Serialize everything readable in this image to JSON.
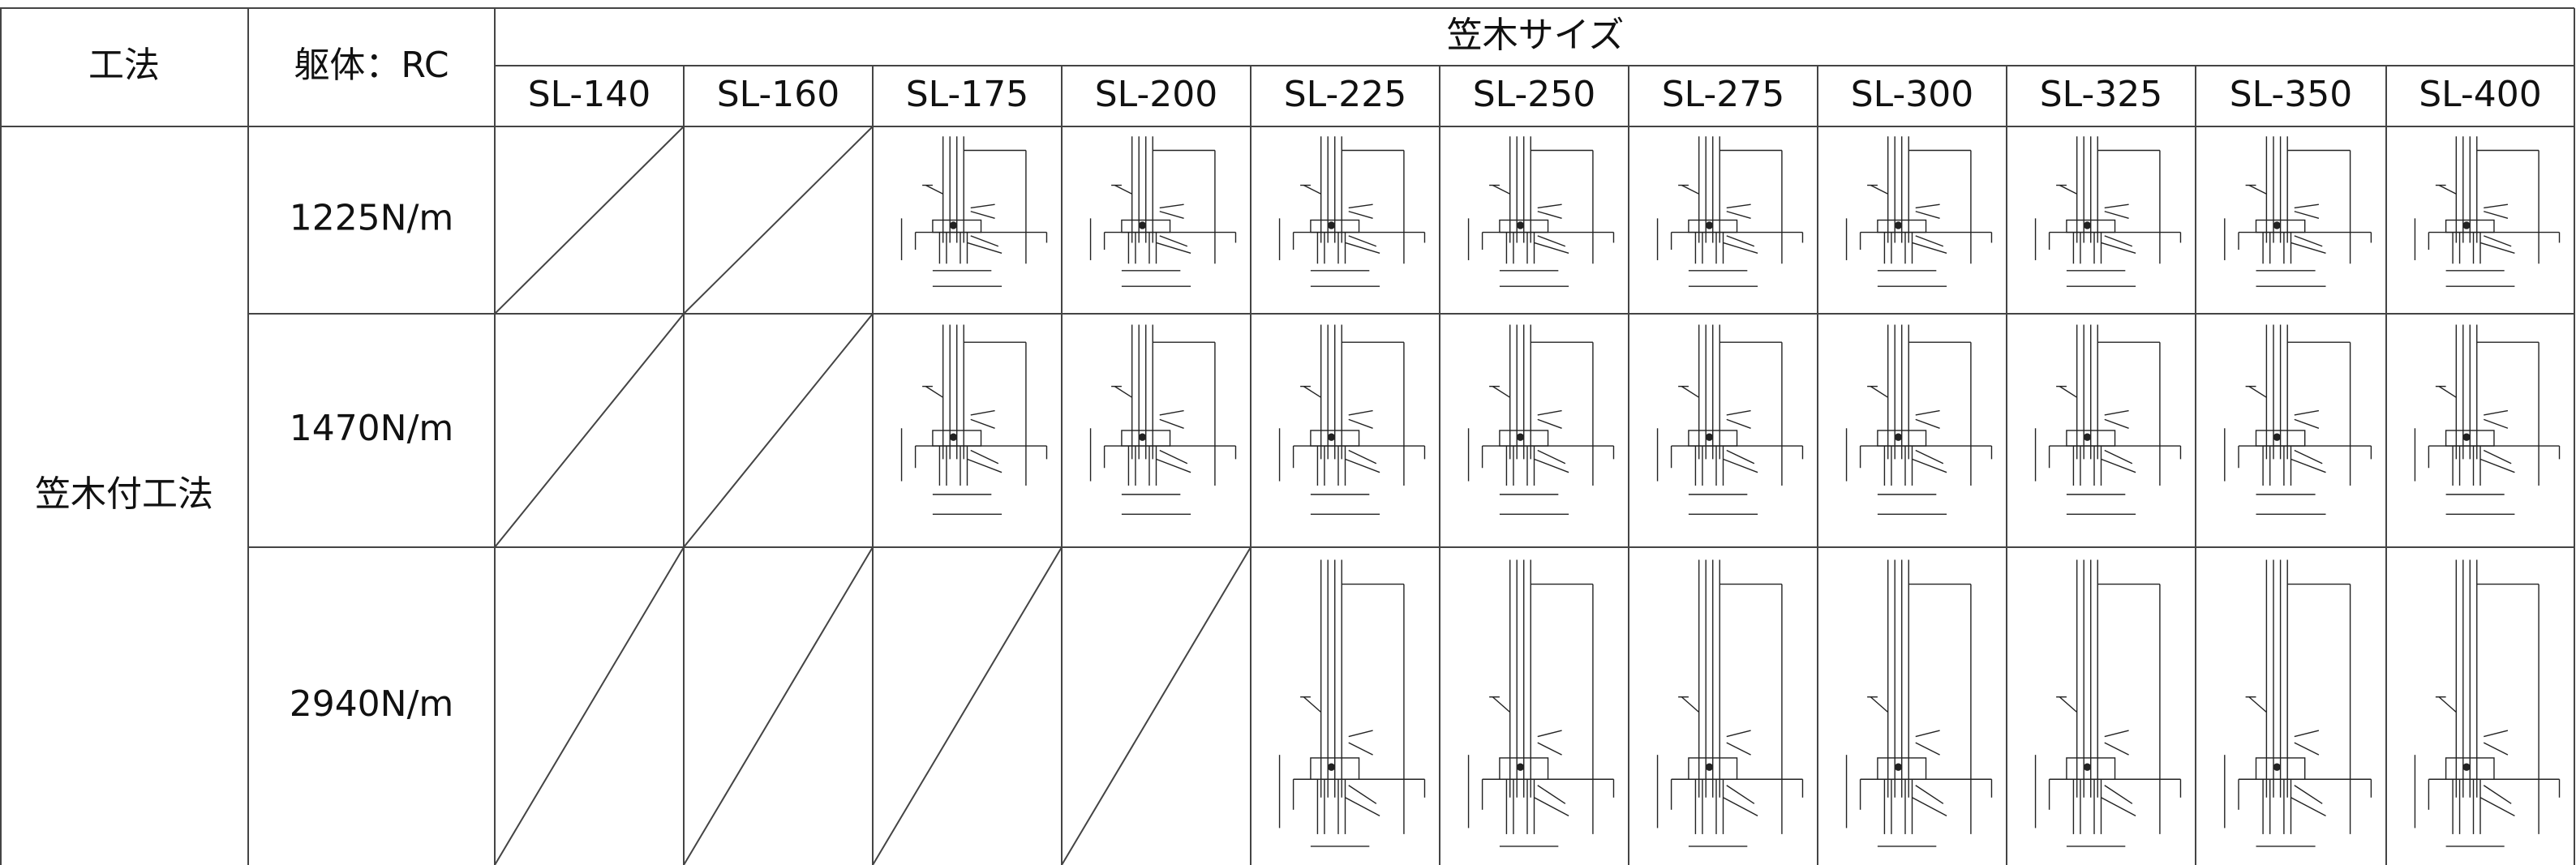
{
  "header": {
    "method": "工法",
    "structure": "躯体：RC",
    "size_group": "笠木サイズ",
    "sizes": [
      "SL-140",
      "SL-160",
      "SL-175",
      "SL-200",
      "SL-225",
      "SL-250",
      "SL-275",
      "SL-300",
      "SL-325",
      "SL-350",
      "SL-400"
    ]
  },
  "method": "笠木付工法",
  "loads": [
    "1225N/m",
    "1470N/m",
    "2940N/m"
  ]
}
